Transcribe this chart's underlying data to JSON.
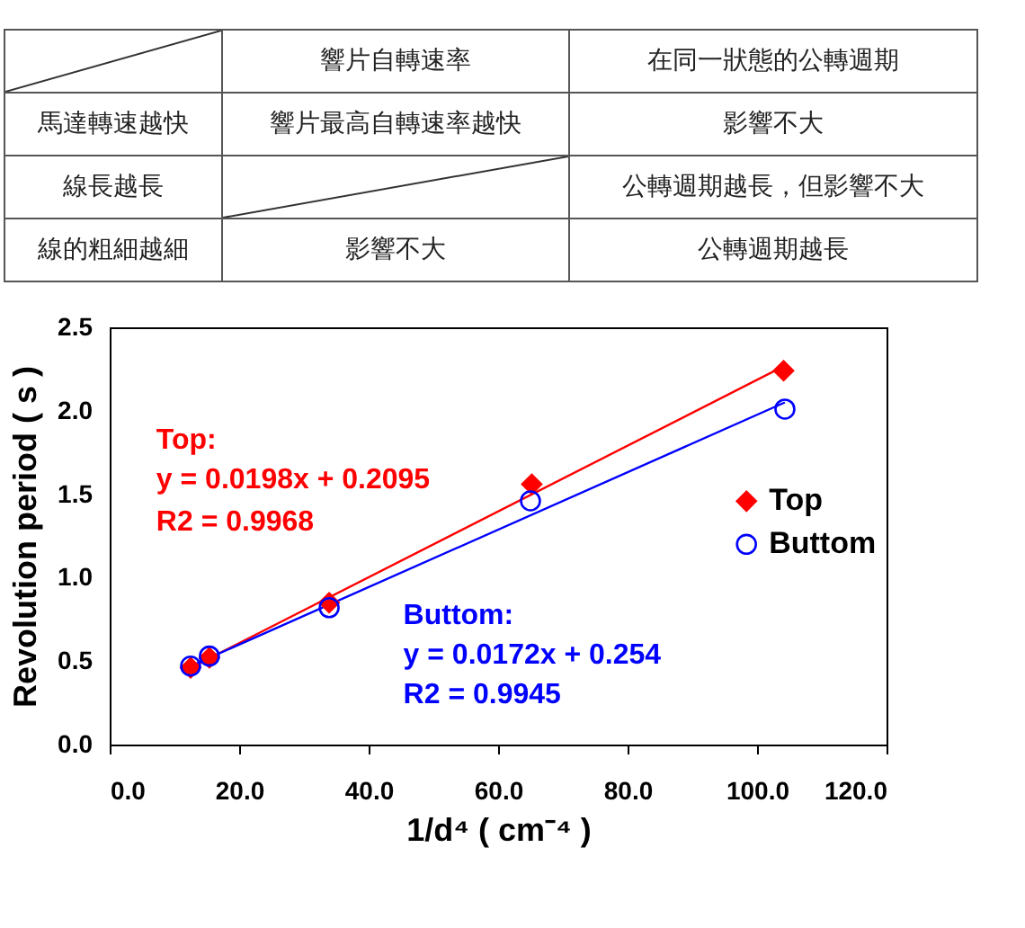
{
  "chart_data": [
    {
      "type": "other",
      "annotations": [
        "響片自轉速率",
        "在同一狀態的公轉週期",
        "馬達轉速越快",
        "響片最高自轉速率越快",
        "影響不大",
        "線長越長",
        "公轉週期越長，但影響不大",
        "線的粗細越細",
        "影響不大",
        "公轉週期越長"
      ]
    },
    {
      "type": "scatter",
      "xlabel": "1/d⁴ ( cm⁻⁴ )",
      "ylabel": "Revolution period ( s )",
      "xlim": [
        0,
        120
      ],
      "ylim": [
        0,
        2.5
      ],
      "xticks": [
        {
          "value": 0,
          "label": "0.0"
        },
        {
          "value": 20,
          "label": "20.0"
        },
        {
          "value": 40,
          "label": "40.0"
        },
        {
          "value": 60,
          "label": "60.0"
        },
        {
          "value": 80,
          "label": "80.0"
        },
        {
          "value": 100,
          "label": "100.0"
        },
        {
          "value": 120,
          "label": "120.0"
        }
      ],
      "yticks": [
        {
          "value": 0,
          "label": "0.0"
        },
        {
          "value": 0.5,
          "label": "0.5"
        },
        {
          "value": 1,
          "label": "1.0"
        },
        {
          "value": 1.5,
          "label": "1.5"
        },
        {
          "value": 2,
          "label": "2.0"
        },
        {
          "value": 2.5,
          "label": "2.5"
        }
      ],
      "grid": false,
      "legend": "right",
      "annotations": [
        "Top:",
        "y = 0.0198x + 0.2095",
        "R2 = 0.9968",
        "Buttom:",
        "y = 0.0172x + 0.254",
        "R2 = 0.9945"
      ],
      "series": [
        {
          "name": "Top",
          "color": "#ff0000",
          "marker": "diamond",
          "x": [
            12.5,
            15.4,
            33.9,
            65.2,
            104.1
          ],
          "values": [
            0.46,
            0.52,
            0.85,
            1.56,
            2.24
          ]
        },
        {
          "name": "Buttom",
          "color": "#0000ff",
          "marker": "circle",
          "x": [
            12.5,
            15.4,
            33.9,
            65.0,
            104.3
          ],
          "values": [
            0.47,
            0.53,
            0.82,
            1.46,
            2.01
          ]
        },
        {
          "type": "line",
          "color": "#ff0000",
          "x": [
            12.5,
            104.3
          ],
          "values": [
            0.46,
            2.27
          ]
        },
        {
          "type": "line",
          "color": "#0000ff",
          "x": [
            12.5,
            104.3
          ],
          "values": [
            0.47,
            2.05
          ]
        }
      ]
    }
  ]
}
